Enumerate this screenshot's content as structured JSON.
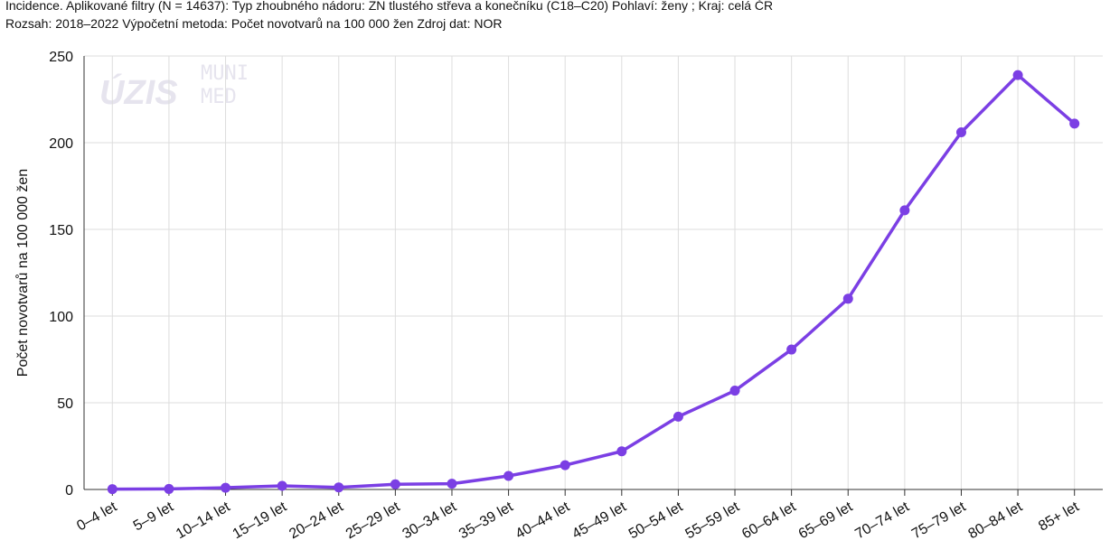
{
  "chart_data": {
    "type": "line",
    "subtitle_lines": [
      "Incidence. Aplikované filtry (N = 14637): Typ zhoubného nádoru: ZN tlustého střeva a konečníku (C18–C20) Pohlaví: ženy ; Kraj: celá ČR",
      "Rozsah: 2018–2022 Výpočetní metoda: Počet novotvarů na 100 000 žen Zdroj dat: NOR"
    ],
    "watermarks": [
      "ÚZIS",
      "MUNI",
      "MED"
    ],
    "y_label": "Počet novotvarů na 100 000 žen",
    "categories": [
      "0–4 let",
      "5–9 let",
      "10–14 let",
      "15–19 let",
      "20–24 let",
      "25–29 let",
      "30–34 let",
      "35–39 let",
      "40–44 let",
      "45–49 let",
      "50–54 let",
      "55–59 let",
      "60–64 let",
      "65–69 let",
      "70–74 let",
      "75–79 let",
      "80–84 let",
      "85+ let"
    ],
    "values": [
      0.2,
      0.3,
      1.0,
      2.1,
      1.2,
      3.0,
      3.3,
      7.8,
      14.0,
      22.0,
      42.0,
      57.0,
      80.7,
      110.0,
      161.0,
      206.0,
      239.0,
      211.0
    ],
    "color": "#7b3fe4",
    "ylim": [
      0,
      250
    ],
    "yticks": [
      0,
      50,
      100,
      150,
      200,
      250
    ],
    "grid": true
  }
}
